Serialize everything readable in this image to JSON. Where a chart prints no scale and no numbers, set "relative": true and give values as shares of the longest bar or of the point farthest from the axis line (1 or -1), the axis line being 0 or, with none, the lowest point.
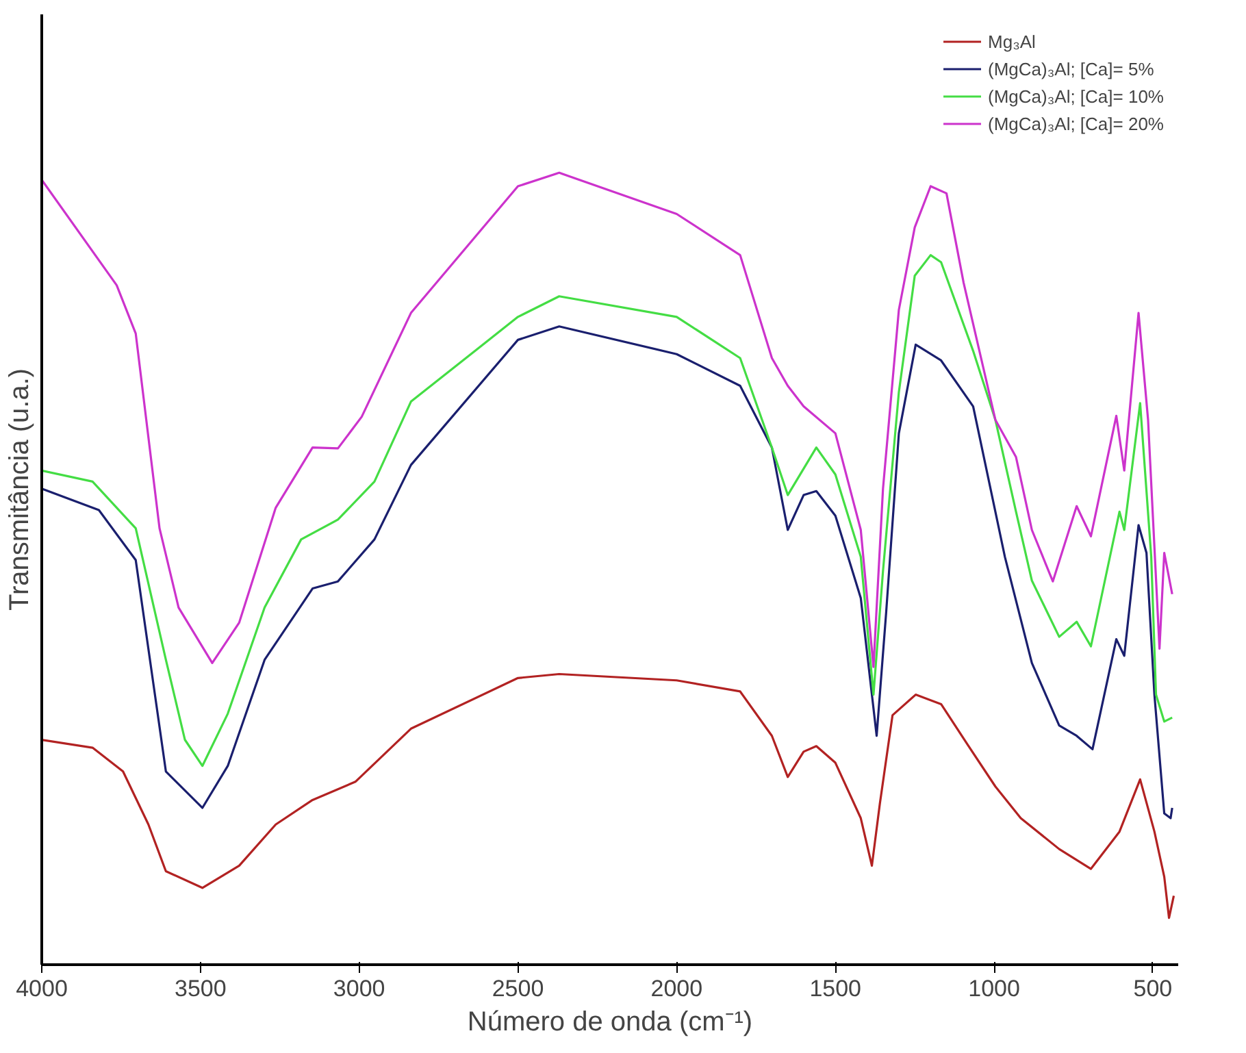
{
  "chart_data": {
    "type": "line",
    "relative": true,
    "xlabel": "Número de onda (cm⁻¹)",
    "ylabel": "Transmitância (u.a.)",
    "xlim": [
      4000,
      420
    ],
    "xticks": [
      4000,
      3500,
      3000,
      2500,
      2000,
      1500,
      1000,
      500
    ],
    "legend": "top right",
    "grid": false,
    "marker": "none",
    "line_style": "solid",
    "series": [
      {
        "name": "Mg₃Al",
        "color": "#b22222",
        "x": [
          4000,
          3840,
          3744,
          3664,
          3609,
          3494,
          3378,
          3263,
          3147,
          3012,
          2837,
          2500,
          2370,
          2000,
          1800,
          1700,
          1650,
          1600,
          1560,
          1500,
          1420,
          1385,
          1360,
          1320,
          1247,
          1167,
          1082,
          996,
          916,
          795,
          695,
          605,
          540,
          495,
          464,
          449,
          434
        ],
        "values": [
          0.284,
          0.274,
          0.244,
          0.177,
          0.118,
          0.097,
          0.125,
          0.177,
          0.208,
          0.231,
          0.298,
          0.362,
          0.367,
          0.359,
          0.345,
          0.289,
          0.237,
          0.269,
          0.276,
          0.255,
          0.185,
          0.125,
          0.203,
          0.315,
          0.341,
          0.329,
          0.277,
          0.225,
          0.185,
          0.146,
          0.121,
          0.168,
          0.234,
          0.168,
          0.111,
          0.059,
          0.087
        ]
      },
      {
        "name": "(MgCa)₃Al; [Ca]= 5%",
        "color": "#1a1f6e",
        "x": [
          4000,
          3820,
          3704,
          3609,
          3494,
          3414,
          3298,
          3147,
          3067,
          2952,
          2837,
          2500,
          2370,
          2000,
          1800,
          1700,
          1650,
          1600,
          1560,
          1500,
          1420,
          1370,
          1340,
          1300,
          1247,
          1167,
          1066,
          966,
          881,
          795,
          740,
          690,
          615,
          590,
          545,
          520,
          495,
          464,
          444,
          439
        ],
        "values": [
          0.601,
          0.574,
          0.511,
          0.244,
          0.198,
          0.251,
          0.385,
          0.475,
          0.484,
          0.537,
          0.631,
          0.789,
          0.806,
          0.771,
          0.731,
          0.653,
          0.549,
          0.593,
          0.598,
          0.567,
          0.463,
          0.289,
          0.445,
          0.671,
          0.783,
          0.763,
          0.705,
          0.515,
          0.381,
          0.302,
          0.289,
          0.272,
          0.411,
          0.39,
          0.555,
          0.52,
          0.341,
          0.191,
          0.185,
          0.198
        ]
      },
      {
        "name": "(MgCa)₃Al; [Ca]= 10%",
        "color": "#44dd44",
        "x": [
          4000,
          3840,
          3704,
          3609,
          3549,
          3494,
          3414,
          3298,
          3183,
          3067,
          2952,
          2837,
          2500,
          2370,
          2000,
          1800,
          1700,
          1650,
          1560,
          1500,
          1420,
          1380,
          1350,
          1300,
          1250,
          1200,
          1167,
          1066,
          996,
          931,
          881,
          795,
          740,
          695,
          605,
          590,
          540,
          505,
          490,
          464,
          439
        ],
        "values": [
          0.624,
          0.61,
          0.551,
          0.385,
          0.284,
          0.251,
          0.317,
          0.451,
          0.537,
          0.562,
          0.61,
          0.711,
          0.818,
          0.844,
          0.818,
          0.766,
          0.653,
          0.593,
          0.653,
          0.619,
          0.515,
          0.341,
          0.497,
          0.723,
          0.87,
          0.896,
          0.887,
          0.775,
          0.688,
          0.572,
          0.485,
          0.414,
          0.433,
          0.402,
          0.572,
          0.549,
          0.709,
          0.515,
          0.341,
          0.307,
          0.312
        ]
      },
      {
        "name": "(MgCa)₃Al; [Ca]= 20%",
        "color": "#cc33cc",
        "x": [
          4000,
          3764,
          3704,
          3629,
          3569,
          3463,
          3378,
          3263,
          3147,
          3067,
          2992,
          2837,
          2500,
          2370,
          2000,
          1800,
          1700,
          1650,
          1600,
          1500,
          1420,
          1380,
          1350,
          1300,
          1250,
          1200,
          1150,
          1096,
          996,
          931,
          881,
          815,
          740,
          695,
          615,
          590,
          545,
          515,
          479,
          464,
          439
        ],
        "values": [
          0.991,
          0.858,
          0.797,
          0.551,
          0.451,
          0.381,
          0.432,
          0.577,
          0.653,
          0.652,
          0.692,
          0.823,
          0.983,
          1.0,
          0.948,
          0.896,
          0.766,
          0.731,
          0.705,
          0.671,
          0.549,
          0.376,
          0.601,
          0.827,
          0.931,
          0.983,
          0.974,
          0.861,
          0.688,
          0.641,
          0.549,
          0.484,
          0.579,
          0.541,
          0.693,
          0.624,
          0.823,
          0.688,
          0.399,
          0.52,
          0.468
        ]
      }
    ]
  }
}
